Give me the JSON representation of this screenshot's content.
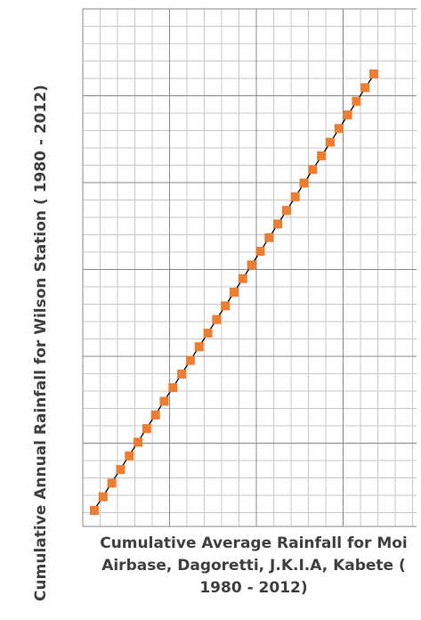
{
  "chart_data": {
    "type": "scatter",
    "xlabel": "Cumulative Average Rainfall for Moi Airbase, Dagoretti, J.K.I.A, Kabete ( 1980 - 2012)",
    "ylabel": "Cumulative Annual Rainfall for Wilson Station ( 1980 - 2012)",
    "grid": true,
    "tick_labels_shown": false,
    "marker_color": "#ED7D31",
    "line_color": "#000000",
    "series": [
      {
        "type": "scatter",
        "marker": "square",
        "x": [
          1,
          2,
          3,
          4,
          5,
          6,
          7,
          8,
          9,
          10,
          11,
          12,
          13,
          14,
          15,
          16,
          17,
          18,
          19,
          20,
          21,
          22,
          23,
          24,
          25,
          26,
          27,
          28,
          29,
          30,
          31,
          32,
          33
        ],
        "y": [
          1,
          2,
          3,
          4,
          5,
          6,
          7,
          8,
          9,
          10,
          11,
          12,
          13,
          14,
          15,
          16,
          17,
          18,
          19,
          20,
          21,
          22,
          23,
          24,
          25,
          26,
          27,
          28,
          29,
          30,
          31,
          32,
          33
        ]
      },
      {
        "type": "line",
        "x": [
          1,
          33
        ],
        "y": [
          1.05,
          32.95
        ]
      }
    ]
  }
}
